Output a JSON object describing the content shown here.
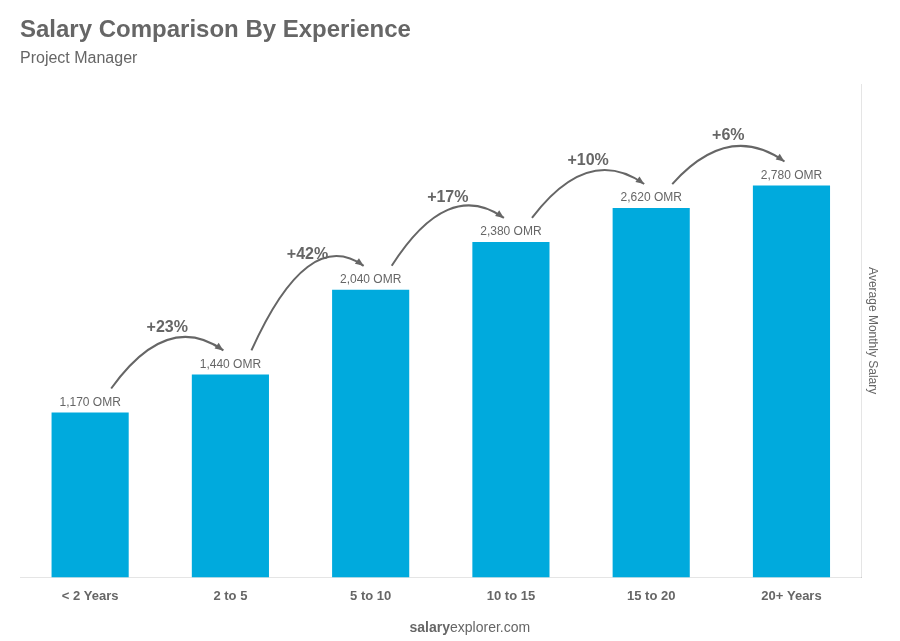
{
  "chart_data": {
    "type": "bar",
    "title": "Salary Comparison By Experience",
    "subtitle": "Project Manager",
    "ylabel": "Average Monthly Salary",
    "categories": [
      "< 2 Years",
      "2 to 5",
      "5 to 10",
      "10 to 15",
      "15 to 20",
      "20+ Years"
    ],
    "values": [
      1170,
      1440,
      2040,
      2380,
      2620,
      2780
    ],
    "value_labels": [
      "1,170 OMR",
      "1,440 OMR",
      "2,040 OMR",
      "2,380 OMR",
      "2,620 OMR",
      "2,780 OMR"
    ],
    "data_labels": true,
    "color": "#00aadd",
    "annotations": [
      "+23%",
      "+42%",
      "+17%",
      "+10%",
      "+6%"
    ],
    "watermark": [
      "salary",
      "explorer.com"
    ],
    "ylim": [
      0,
      3500
    ],
    "grid": false,
    "tick_labels": "x"
  }
}
